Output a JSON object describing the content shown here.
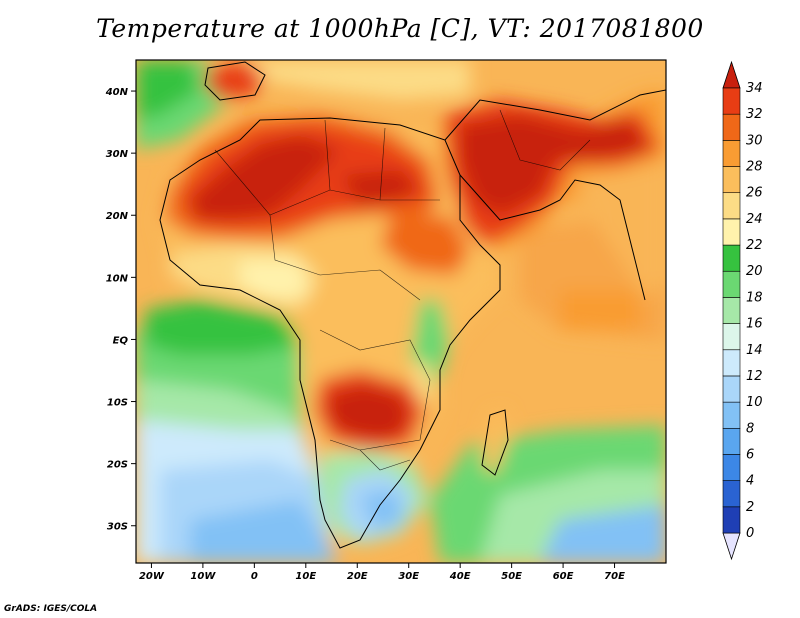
{
  "title": "Temperature at 1000hPa [C], VT: 2017081800",
  "credit": "GrADS: IGES/COLA",
  "map": {
    "lon_range": [
      -23,
      80
    ],
    "lat_range": [
      -36,
      45
    ],
    "x_ticks": [
      {
        "lon": -20,
        "label": "20W"
      },
      {
        "lon": -10,
        "label": "10W"
      },
      {
        "lon": 0,
        "label": "0"
      },
      {
        "lon": 10,
        "label": "10E"
      },
      {
        "lon": 20,
        "label": "20E"
      },
      {
        "lon": 30,
        "label": "30E"
      },
      {
        "lon": 40,
        "label": "40E"
      },
      {
        "lon": 50,
        "label": "50E"
      },
      {
        "lon": 60,
        "label": "60E"
      },
      {
        "lon": 70,
        "label": "70E"
      }
    ],
    "y_ticks": [
      {
        "lat": 40,
        "label": "40N"
      },
      {
        "lat": 30,
        "label": "30N"
      },
      {
        "lat": 20,
        "label": "20N"
      },
      {
        "lat": 10,
        "label": "10N"
      },
      {
        "lat": 0,
        "label": "EQ"
      },
      {
        "lat": -10,
        "label": "10S"
      },
      {
        "lat": -20,
        "label": "20S"
      },
      {
        "lat": -30,
        "label": "30S"
      }
    ]
  },
  "colorbar": {
    "levels": [
      0,
      2,
      4,
      6,
      8,
      10,
      12,
      14,
      16,
      18,
      20,
      22,
      24,
      26,
      28,
      30,
      32,
      34
    ],
    "labels": [
      "0",
      "2",
      "4",
      "6",
      "8",
      "10",
      "12",
      "14",
      "16",
      "18",
      "20",
      "22",
      "24",
      "26",
      "28",
      "30",
      "32",
      "34"
    ],
    "colors": [
      "#10137a",
      "#1f3fb5",
      "#2a63d2",
      "#3c87e6",
      "#5aa6ef",
      "#82c1f5",
      "#aad6f9",
      "#cdeafc",
      "#dcf6ea",
      "#a6e8a8",
      "#6bd872",
      "#36c23f",
      "#fff2ac",
      "#fcdc86",
      "#fbbe5c",
      "#f99c33",
      "#f06818",
      "#e83d14",
      "#c8200e"
    ],
    "under_color": "#e6e4ff",
    "over_color": "#c8200e"
  }
}
